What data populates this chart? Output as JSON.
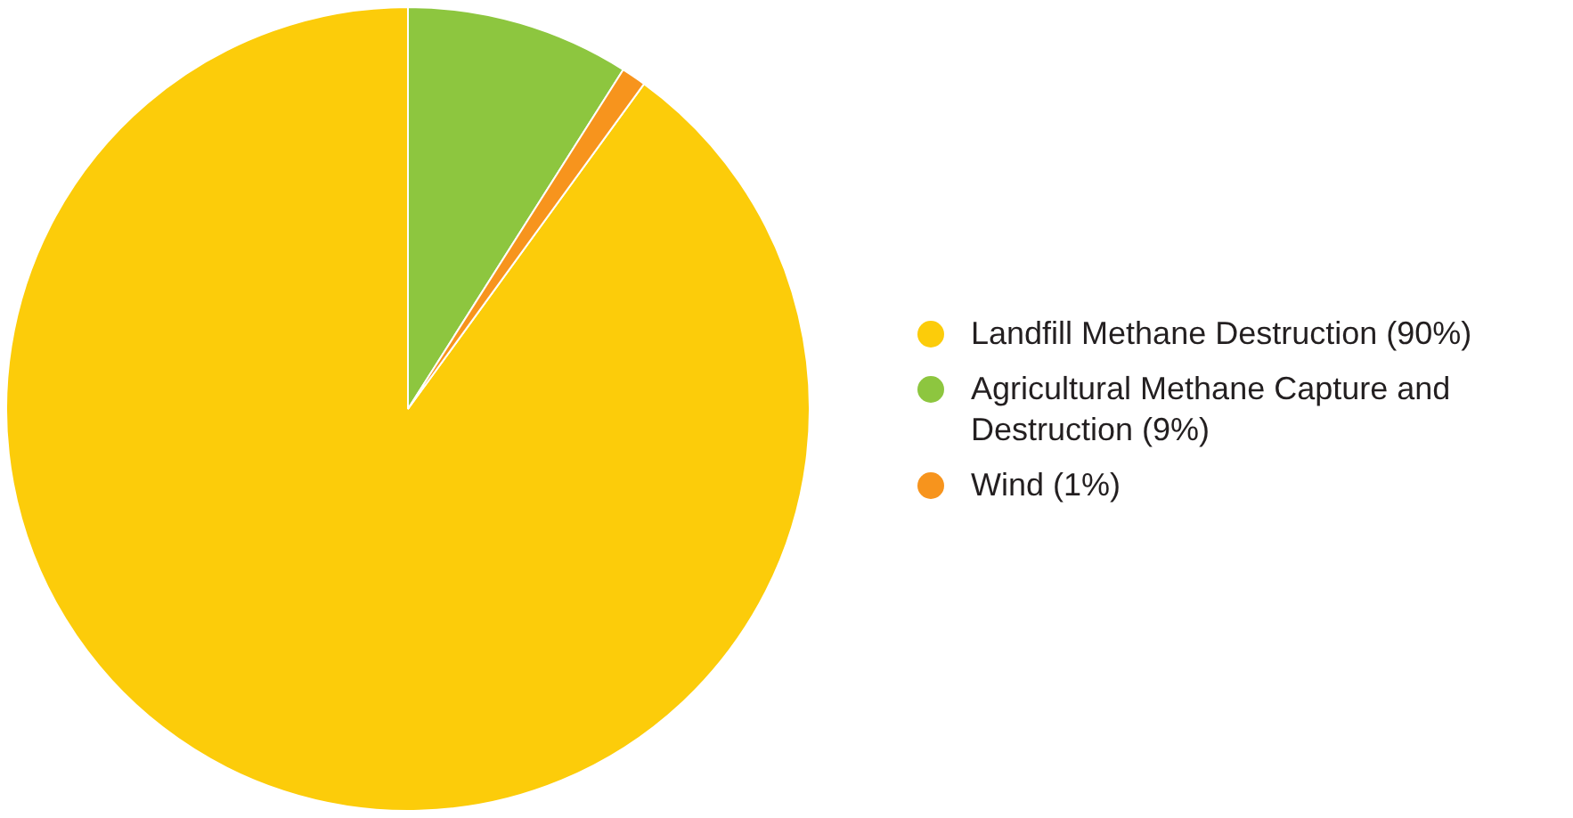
{
  "chart_data": {
    "type": "pie",
    "categories": [
      "Landfill Methane Destruction (90%)",
      "Agricultural Methane Capture and Destruction (9%)",
      "Wind (1%)"
    ],
    "values": [
      90,
      9,
      1
    ],
    "colors": [
      "#fccc0a",
      "#8dc63f",
      "#f7941d"
    ],
    "legend": "right"
  }
}
